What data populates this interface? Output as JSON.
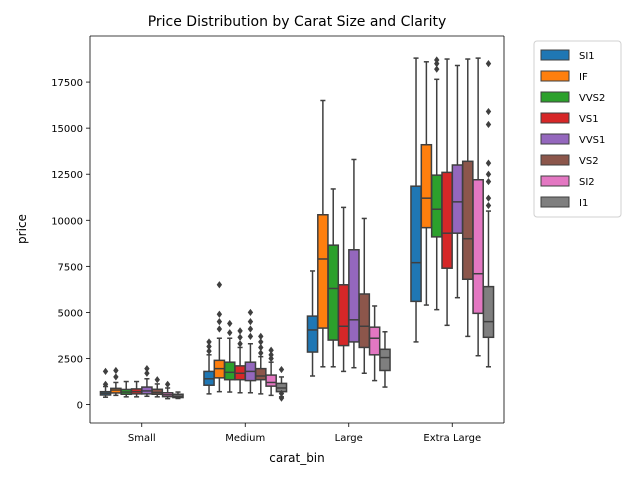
{
  "chart_data": {
    "type": "box",
    "title": "Price Distribution by Carat Size and Clarity",
    "xlabel": "carat_bin",
    "ylabel": "price",
    "categories": [
      "Small",
      "Medium",
      "Large",
      "Extra Large"
    ],
    "ylim": [
      -1000,
      20000
    ],
    "yticks": [
      0,
      2500,
      5000,
      7500,
      10000,
      12500,
      15000,
      17500
    ],
    "ytick_labels": [
      "0",
      "2500",
      "5000",
      "7500",
      "10000",
      "12500",
      "15000",
      "17500"
    ],
    "legend_position": "outside-top-right",
    "series": [
      {
        "name": "SI1",
        "color": "#1f77b4",
        "boxes": [
          {
            "q1": 520,
            "median": 610,
            "q3": 700,
            "whislo": 400,
            "whishi": 980,
            "outliers": [
              1100,
              1800
            ]
          },
          {
            "q1": 1050,
            "median": 1400,
            "q3": 1800,
            "whislo": 580,
            "whishi": 2700,
            "outliers": [
              2900,
              3150,
              3400
            ]
          },
          {
            "q1": 2850,
            "median": 4050,
            "q3": 4800,
            "whislo": 1550,
            "whishi": 7250,
            "outliers": []
          },
          {
            "q1": 5600,
            "median": 7700,
            "q3": 11850,
            "whislo": 3400,
            "whishi": 18800,
            "outliers": []
          }
        ]
      },
      {
        "name": "IF",
        "color": "#ff7f0e",
        "boxes": [
          {
            "q1": 630,
            "median": 790,
            "q3": 880,
            "whislo": 500,
            "whishi": 1200,
            "outliers": [
              1500,
              1850
            ]
          },
          {
            "q1": 1450,
            "median": 1950,
            "q3": 2400,
            "whislo": 700,
            "whishi": 3600,
            "outliers": [
              4100,
              4500,
              4900,
              6500
            ]
          },
          {
            "q1": 4150,
            "median": 7900,
            "q3": 10300,
            "whislo": 2050,
            "whishi": 16500,
            "outliers": []
          },
          {
            "q1": 9600,
            "median": 11200,
            "q3": 14100,
            "whislo": 5400,
            "whishi": 18600,
            "outliers": []
          }
        ]
      },
      {
        "name": "VVS2",
        "color": "#2ca02c",
        "boxes": [
          {
            "q1": 560,
            "median": 680,
            "q3": 820,
            "whislo": 420,
            "whishi": 1250,
            "outliers": []
          },
          {
            "q1": 1350,
            "median": 1750,
            "q3": 2300,
            "whislo": 680,
            "whishi": 3600,
            "outliers": [
              3900,
              4400
            ]
          },
          {
            "q1": 3500,
            "median": 6300,
            "q3": 8650,
            "whislo": 2050,
            "whishi": 11700,
            "outliers": []
          },
          {
            "q1": 9100,
            "median": 10600,
            "q3": 12450,
            "whislo": 5150,
            "whishi": 17650,
            "outliers": [
              18200,
              18500,
              18700
            ]
          }
        ]
      },
      {
        "name": "VS1",
        "color": "#d62728",
        "boxes": [
          {
            "q1": 580,
            "median": 700,
            "q3": 850,
            "whislo": 420,
            "whishi": 1250,
            "outliers": []
          },
          {
            "q1": 1350,
            "median": 1700,
            "q3": 2100,
            "whislo": 640,
            "whishi": 3100,
            "outliers": [
              3300,
              3650,
              4000
            ]
          },
          {
            "q1": 3200,
            "median": 4250,
            "q3": 6500,
            "whislo": 1800,
            "whishi": 10700,
            "outliers": []
          },
          {
            "q1": 7400,
            "median": 9300,
            "q3": 12600,
            "whislo": 4300,
            "whishi": 18750,
            "outliers": []
          }
        ]
      },
      {
        "name": "VVS1",
        "color": "#9467bd",
        "boxes": [
          {
            "q1": 580,
            "median": 740,
            "q3": 950,
            "whislo": 450,
            "whishi": 1400,
            "outliers": [
              1700,
              1950
            ]
          },
          {
            "q1": 1300,
            "median": 1800,
            "q3": 2300,
            "whislo": 640,
            "whishi": 3300,
            "outliers": [
              3700,
              4100,
              4500,
              5000
            ]
          },
          {
            "q1": 3400,
            "median": 4600,
            "q3": 8400,
            "whislo": 2000,
            "whishi": 13300,
            "outliers": []
          },
          {
            "q1": 9300,
            "median": 11000,
            "q3": 13000,
            "whislo": 5800,
            "whishi": 18400,
            "outliers": []
          }
        ]
      },
      {
        "name": "VS2",
        "color": "#8c564b",
        "boxes": [
          {
            "q1": 560,
            "median": 660,
            "q3": 830,
            "whislo": 420,
            "whishi": 1120,
            "outliers": [
              1350
            ]
          },
          {
            "q1": 1350,
            "median": 1550,
            "q3": 1950,
            "whislo": 580,
            "whishi": 2600,
            "outliers": [
              2800,
              3100,
              3400,
              3700
            ]
          },
          {
            "q1": 3100,
            "median": 4250,
            "q3": 6000,
            "whislo": 1700,
            "whishi": 10100,
            "outliers": []
          },
          {
            "q1": 6800,
            "median": 9000,
            "q3": 13200,
            "whislo": 3700,
            "whishi": 18750,
            "outliers": []
          }
        ]
      },
      {
        "name": "SI2",
        "color": "#e377c2",
        "boxes": [
          {
            "q1": 430,
            "median": 530,
            "q3": 640,
            "whislo": 320,
            "whishi": 900,
            "outliers": [
              1100
            ]
          },
          {
            "q1": 1000,
            "median": 1200,
            "q3": 1600,
            "whislo": 500,
            "whishi": 2300,
            "outliers": [
              2500,
              2700,
              2950
            ]
          },
          {
            "q1": 2700,
            "median": 3600,
            "q3": 4200,
            "whislo": 1300,
            "whishi": 5350,
            "outliers": []
          },
          {
            "q1": 4950,
            "median": 7100,
            "q3": 12200,
            "whislo": 2650,
            "whishi": 18800,
            "outliers": []
          }
        ]
      },
      {
        "name": "I1",
        "color": "#7f7f7f",
        "boxes": [
          {
            "q1": 380,
            "median": 450,
            "q3": 560,
            "whislo": 330,
            "whishi": 680,
            "outliers": []
          },
          {
            "q1": 700,
            "median": 900,
            "q3": 1150,
            "whislo": 420,
            "whishi": 1500,
            "outliers": [
              350,
              600,
              1900
            ]
          },
          {
            "q1": 1850,
            "median": 2550,
            "q3": 3000,
            "whislo": 950,
            "whishi": 3950,
            "outliers": []
          },
          {
            "q1": 3650,
            "median": 4500,
            "q3": 6400,
            "whislo": 2050,
            "whishi": 10500,
            "outliers": [
              10800,
              11200,
              12100,
              12500,
              13100,
              15200,
              15900,
              18500
            ]
          }
        ]
      }
    ]
  }
}
